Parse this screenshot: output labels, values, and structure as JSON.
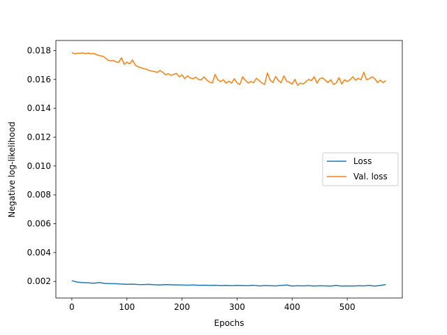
{
  "chart_data": {
    "type": "line",
    "title": "",
    "xlabel": "Epochs",
    "ylabel": "Negative log-likelihood",
    "xlim": [
      -29,
      600
    ],
    "ylim": [
      0.00085,
      0.0187
    ],
    "xticks": [
      0,
      100,
      200,
      300,
      400,
      500
    ],
    "yticks": [
      0.002,
      0.004,
      0.006,
      0.008,
      0.01,
      0.012,
      0.014,
      0.016,
      0.018
    ],
    "ytick_labels": [
      "0.002",
      "0.004",
      "0.006",
      "0.008",
      "0.010",
      "0.012",
      "0.014",
      "0.016",
      "0.018"
    ],
    "grid": false,
    "legend_position": "center-right",
    "series": [
      {
        "name": "Loss",
        "color": "#1f77b4",
        "x": [
          0,
          10,
          20,
          30,
          40,
          50,
          60,
          70,
          80,
          90,
          100,
          110,
          120,
          130,
          140,
          150,
          160,
          170,
          180,
          190,
          200,
          210,
          220,
          230,
          240,
          250,
          260,
          270,
          280,
          290,
          300,
          310,
          320,
          330,
          340,
          350,
          360,
          370,
          380,
          390,
          400,
          410,
          420,
          430,
          440,
          450,
          460,
          470,
          480,
          490,
          500,
          510,
          520,
          530,
          540,
          550,
          560,
          570
        ],
        "values": [
          0.00205,
          0.00195,
          0.00192,
          0.0019,
          0.00188,
          0.00192,
          0.00186,
          0.00185,
          0.00184,
          0.00182,
          0.0018,
          0.00181,
          0.00179,
          0.00178,
          0.0018,
          0.00177,
          0.00176,
          0.00178,
          0.00177,
          0.00176,
          0.00175,
          0.00174,
          0.00176,
          0.00173,
          0.00174,
          0.00172,
          0.00173,
          0.00171,
          0.00172,
          0.0017,
          0.00172,
          0.00171,
          0.0017,
          0.00173,
          0.00169,
          0.00171,
          0.0017,
          0.00169,
          0.00172,
          0.00175,
          0.00168,
          0.0017,
          0.00169,
          0.00171,
          0.00168,
          0.0017,
          0.00169,
          0.00168,
          0.00172,
          0.00167,
          0.00169,
          0.00168,
          0.0017,
          0.00169,
          0.00172,
          0.00168,
          0.00172,
          0.00178
        ]
      },
      {
        "name": "Val. loss",
        "color": "#ff7f0e",
        "x": [
          0,
          5,
          10,
          15,
          20,
          25,
          30,
          35,
          40,
          45,
          50,
          55,
          60,
          65,
          70,
          75,
          80,
          85,
          90,
          95,
          100,
          105,
          110,
          115,
          120,
          125,
          130,
          135,
          140,
          145,
          150,
          155,
          160,
          165,
          170,
          175,
          180,
          185,
          190,
          195,
          200,
          205,
          210,
          215,
          220,
          225,
          230,
          235,
          240,
          245,
          250,
          255,
          260,
          265,
          270,
          275,
          280,
          285,
          290,
          295,
          300,
          305,
          310,
          315,
          320,
          325,
          330,
          335,
          340,
          345,
          350,
          355,
          360,
          365,
          370,
          375,
          380,
          385,
          390,
          395,
          400,
          405,
          410,
          415,
          420,
          425,
          430,
          435,
          440,
          445,
          450,
          455,
          460,
          465,
          470,
          475,
          480,
          485,
          490,
          495,
          500,
          505,
          510,
          515,
          520,
          525,
          530,
          535,
          540,
          545,
          550,
          555,
          560,
          565,
          570
        ],
        "values": [
          0.01787,
          0.01778,
          0.01782,
          0.01781,
          0.01784,
          0.01779,
          0.01783,
          0.01778,
          0.01779,
          0.01772,
          0.01765,
          0.01762,
          0.01752,
          0.01735,
          0.01728,
          0.01732,
          0.01722,
          0.01718,
          0.0175,
          0.01705,
          0.0172,
          0.01708,
          0.01735,
          0.017,
          0.01688,
          0.01682,
          0.01675,
          0.01672,
          0.01662,
          0.01658,
          0.01655,
          0.01648,
          0.01662,
          0.0165,
          0.01632,
          0.0164,
          0.01628,
          0.01635,
          0.01642,
          0.01618,
          0.01632,
          0.01605,
          0.01625,
          0.0161,
          0.01605,
          0.01615,
          0.016,
          0.01598,
          0.01618,
          0.01595,
          0.01582,
          0.01575,
          0.01635,
          0.01598,
          0.01585,
          0.01598,
          0.01575,
          0.01588,
          0.01575,
          0.01605,
          0.01575,
          0.01565,
          0.01618,
          0.01595,
          0.01575,
          0.01585,
          0.01578,
          0.01608,
          0.01592,
          0.01575,
          0.01565,
          0.01645,
          0.01595,
          0.01578,
          0.0162,
          0.01592,
          0.01578,
          0.01625,
          0.01588,
          0.0158,
          0.01568,
          0.016,
          0.01558,
          0.01575,
          0.01568,
          0.01585,
          0.016,
          0.01592,
          0.01618,
          0.01575,
          0.01605,
          0.01612,
          0.01595,
          0.01578,
          0.01598,
          0.01565,
          0.01575,
          0.01612,
          0.01568,
          0.01598,
          0.01585,
          0.01598,
          0.01618,
          0.01595,
          0.01608,
          0.01598,
          0.0165,
          0.01598,
          0.01605,
          0.01618,
          0.01605,
          0.01578,
          0.01595,
          0.01578,
          0.01592
        ]
      }
    ]
  }
}
